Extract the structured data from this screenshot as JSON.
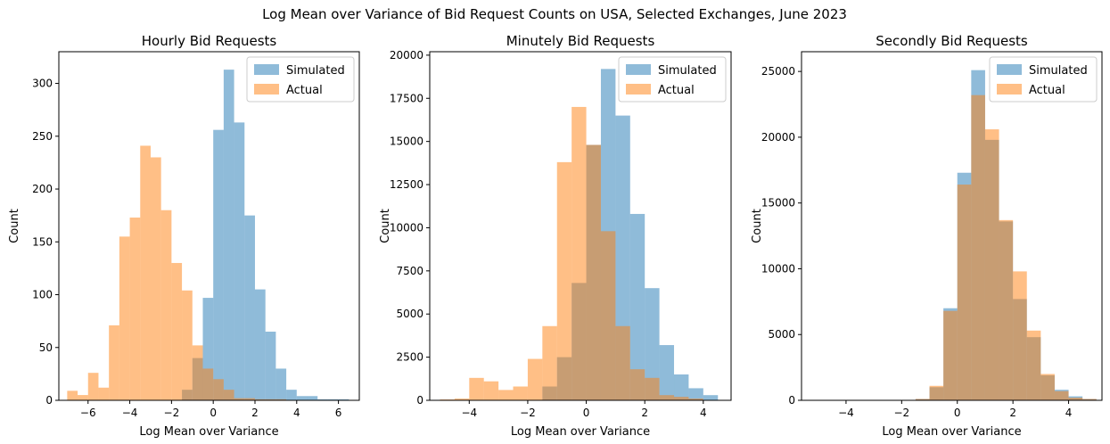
{
  "suptitle": "Log Mean over Variance of Bid Request Counts on USA, Selected Exchanges, June 2023",
  "colors": {
    "simulated": "#1f77b4",
    "actual": "#ff7f0e",
    "simulated_alpha": 0.5,
    "actual_alpha": 0.5
  },
  "chart_data": [
    {
      "type": "histogram",
      "title": "Hourly Bid Requests",
      "xlabel": "Log Mean over Variance",
      "ylabel": "Count",
      "xlim": [
        -7.4,
        7.0
      ],
      "ylim": [
        0,
        330
      ],
      "xticks": [
        -6,
        -4,
        -2,
        0,
        2,
        4,
        6
      ],
      "yticks": [
        0,
        50,
        100,
        150,
        200,
        250,
        300
      ],
      "legend": {
        "position": "top-right",
        "entries": [
          "Simulated",
          "Actual"
        ]
      },
      "series": [
        {
          "name": "Simulated",
          "bin_start": -1.5,
          "bin_width": 0.5,
          "counts": [
            10,
            40,
            97,
            256,
            313,
            263,
            175,
            105,
            65,
            30,
            10,
            4,
            4,
            1,
            1,
            1
          ]
        },
        {
          "name": "Actual",
          "bin_start": -7.0,
          "bin_width": 0.5,
          "counts": [
            9,
            5,
            26,
            12,
            71,
            155,
            173,
            241,
            230,
            180,
            130,
            104,
            52,
            30,
            20,
            10,
            2,
            2,
            1,
            1,
            1,
            0,
            0,
            0,
            0,
            0
          ]
        }
      ]
    },
    {
      "type": "histogram",
      "title": "Minutely Bid Requests",
      "xlabel": "Log Mean over Variance",
      "ylabel": "Count",
      "xlim": [
        -5.35,
        4.95
      ],
      "ylim": [
        0,
        20200
      ],
      "xticks": [
        -4,
        -2,
        0,
        2,
        4
      ],
      "yticks": [
        0,
        2500,
        5000,
        7500,
        10000,
        12500,
        15000,
        17500,
        20000
      ],
      "legend": {
        "position": "top-right",
        "entries": [
          "Simulated",
          "Actual"
        ]
      },
      "series": [
        {
          "name": "Simulated",
          "bin_start": -1.5,
          "bin_width": 0.5,
          "counts": [
            800,
            2500,
            6800,
            14800,
            19200,
            16500,
            10800,
            6500,
            3200,
            1500,
            700,
            300
          ]
        },
        {
          "name": "Actual",
          "bin_start": -5.0,
          "bin_width": 0.5,
          "counts": [
            50,
            100,
            1300,
            1100,
            600,
            800,
            2400,
            4300,
            13800,
            17000,
            14800,
            9800,
            4300,
            1800,
            1300,
            300,
            200,
            100,
            0,
            0
          ]
        }
      ]
    },
    {
      "type": "histogram",
      "title": "Secondly Bid Requests",
      "xlabel": "Log Mean over Variance",
      "ylabel": "Count",
      "xlim": [
        -5.6,
        5.2
      ],
      "ylim": [
        0,
        26500
      ],
      "xticks": [
        -4,
        -2,
        0,
        2,
        4
      ],
      "yticks": [
        0,
        5000,
        10000,
        15000,
        20000,
        25000
      ],
      "legend": {
        "position": "top-right",
        "entries": [
          "Simulated",
          "Actual"
        ]
      },
      "series": [
        {
          "name": "Simulated",
          "bin_start": -1.5,
          "bin_width": 0.5,
          "counts": [
            100,
            1000,
            7000,
            17300,
            25100,
            19800,
            13600,
            7700,
            4800,
            1900,
            800,
            300,
            100
          ]
        },
        {
          "name": "Actual",
          "bin_start": -5.0,
          "bin_width": 0.5,
          "counts": [
            0,
            0,
            0,
            0,
            0,
            0,
            0,
            100,
            1100,
            6800,
            16400,
            23200,
            20600,
            13700,
            9800,
            5300,
            2000,
            700,
            200,
            100
          ]
        }
      ]
    }
  ]
}
